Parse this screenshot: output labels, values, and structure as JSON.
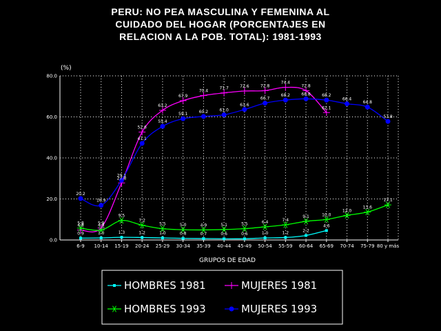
{
  "title_lines": [
    "PERU: NO PEA MASCULINA Y FEMENINA AL",
    "CUIDADO DEL HOGAR (PORCENTAJES EN",
    "RELACION A LA POB. TOTAL): 1981-1993"
  ],
  "chart_data": {
    "type": "line",
    "title": "PERU: NO PEA MASCULINA Y FEMENINA AL CUIDADO DEL HOGAR (PORCENTAJES EN RELACION A LA POB. TOTAL): 1981-1993",
    "xlabel": "GRUPOS DE EDAD",
    "ylabel": "(%)",
    "ylim": [
      0,
      80
    ],
    "yticks": [
      "0.0",
      "20.0",
      "40.0",
      "60.0",
      "80.0"
    ],
    "categories": [
      "6-9",
      "10-14",
      "15-19",
      "20-24",
      "25-29",
      "30-34",
      "35-39",
      "40-44",
      "45-49",
      "50-54",
      "55-59",
      "60-64",
      "65-69",
      "70-74",
      "75-79",
      "80 y más"
    ],
    "grid": true,
    "legend_position": "bottom",
    "series": [
      {
        "name": "HOMBRES 1981",
        "color": "#00ffff",
        "marker": "square",
        "values": [
          0.9,
          1.0,
          1.3,
          1.2,
          1.0,
          0.8,
          0.7,
          0.6,
          0.6,
          1.0,
          1.2,
          2.2,
          4.6,
          null,
          null,
          null
        ],
        "labels": [
          "0.9",
          "1.0",
          "1.3",
          "1.2",
          "1.0",
          "0.8",
          "0.7",
          "0.6",
          "0.6",
          "1.0",
          "1.2",
          "2.2",
          "4.6",
          "",
          "",
          ""
        ]
      },
      {
        "name": "MUJERES 1981",
        "color": "#ff00ff",
        "marker": "plus",
        "values": [
          4.8,
          5.9,
          27.8,
          52.6,
          63.2,
          67.9,
          70.4,
          71.7,
          72.6,
          72.8,
          74.4,
          72.8,
          62.1,
          null,
          null,
          null
        ],
        "labels": [
          "4.8",
          "5.9",
          "27.8",
          "52.6",
          "63.2",
          "67.9",
          "70.4",
          "71.7",
          "72.6",
          "72.8",
          "74.4",
          "72.8",
          "62.1",
          "",
          "",
          ""
        ]
      },
      {
        "name": "HOMBRES 1993",
        "color": "#00ff00",
        "marker": "star",
        "values": [
          5.8,
          4.8,
          9.5,
          7.2,
          5.5,
          5.0,
          4.9,
          5.1,
          5.5,
          6.4,
          7.4,
          9.1,
          10.0,
          12.0,
          13.6,
          17.1
        ],
        "labels": [
          "5.8",
          "4.8",
          "9.5",
          "7.2",
          "5.5",
          "5.0",
          "4.9",
          "5.1",
          "5.5",
          "6.4",
          "7.4",
          "9.1",
          "10.0",
          "12.0",
          "13.6",
          "17.1"
        ]
      },
      {
        "name": "MUJERES 1993",
        "color": "#0000ff",
        "marker": "circle",
        "values": [
          20.2,
          16.9,
          29.1,
          47.1,
          55.4,
          59.1,
          60.2,
          61.0,
          63.6,
          66.7,
          68.2,
          68.8,
          68.2,
          66.4,
          64.8,
          57.8
        ],
        "labels": [
          "20.2",
          "16.9",
          "29.1",
          "47.1",
          "55.4",
          "59.1",
          "60.2",
          "61.0",
          "63.6",
          "66.7",
          "68.2",
          "68.8",
          "68.2",
          "66.4",
          "64.8",
          "57.8"
        ]
      }
    ]
  }
}
